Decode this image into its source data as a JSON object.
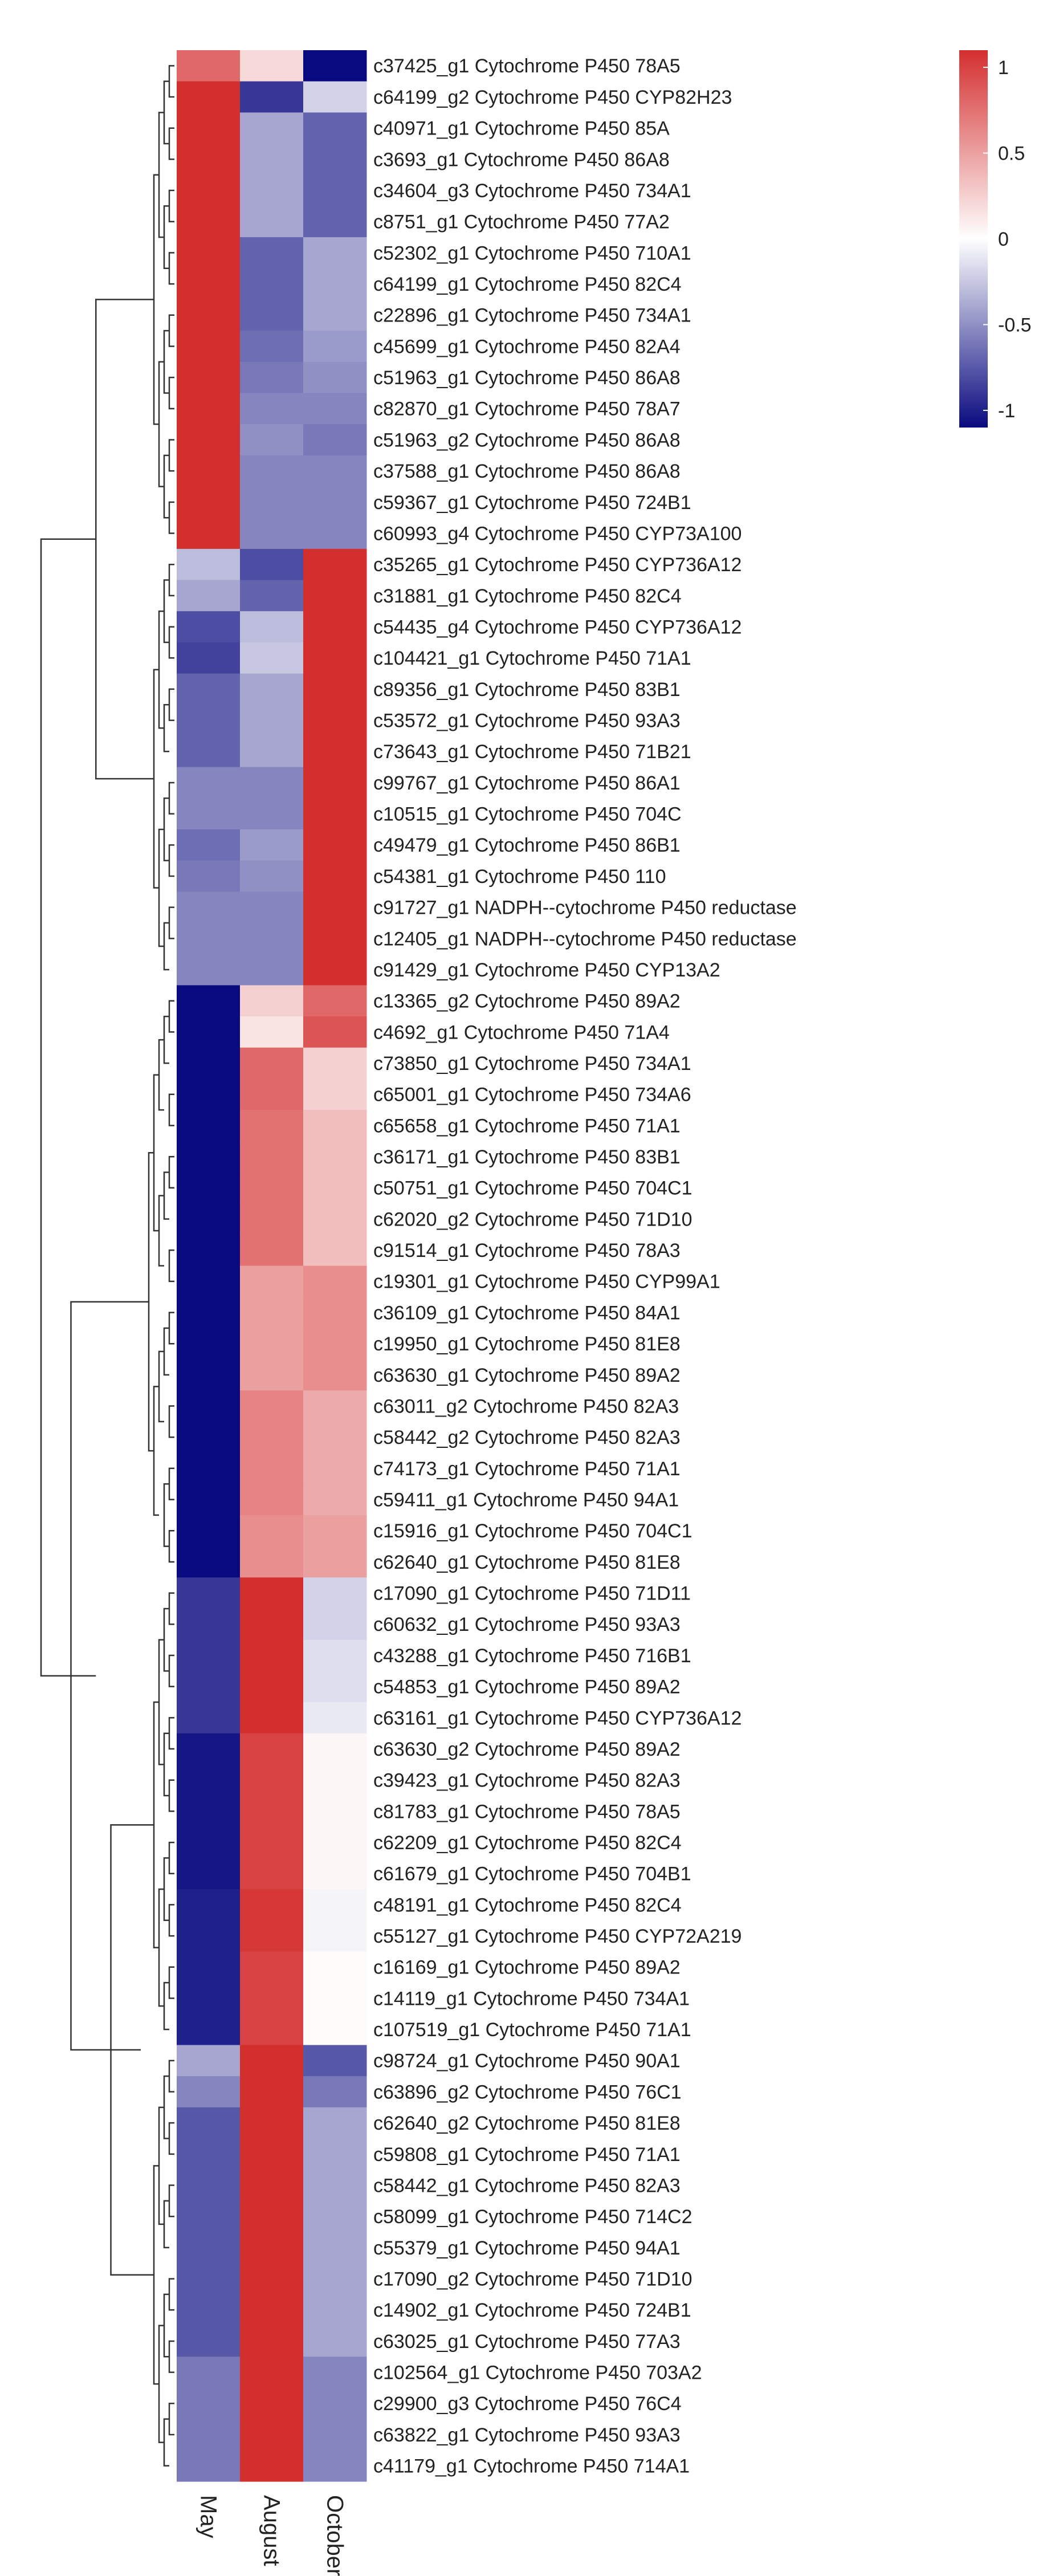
{
  "chart_data": {
    "type": "heatmap",
    "title": "",
    "columns": [
      "May",
      "August",
      "October"
    ],
    "rows": [
      {
        "label": "c37425_g1 Cytochrome P450 78A5",
        "values": [
          0.8,
          0.2,
          -1.1
        ]
      },
      {
        "label": "c64199_g2 Cytochrome P450 CYP82H23",
        "values": [
          1.1,
          -0.9,
          -0.2
        ]
      },
      {
        "label": "c40971_g1 Cytochrome P450 85A",
        "values": [
          1.1,
          -0.4,
          -0.7
        ]
      },
      {
        "label": "c3693_g1 Cytochrome P450 86A8",
        "values": [
          1.1,
          -0.4,
          -0.7
        ]
      },
      {
        "label": "c34604_g3 Cytochrome P450 734A1",
        "values": [
          1.1,
          -0.4,
          -0.7
        ]
      },
      {
        "label": "c8751_g1 Cytochrome P450 77A2",
        "values": [
          1.1,
          -0.4,
          -0.7
        ]
      },
      {
        "label": "c52302_g1 Cytochrome P450 710A1",
        "values": [
          1.1,
          -0.7,
          -0.4
        ]
      },
      {
        "label": "c64199_g1 Cytochrome P450 82C4",
        "values": [
          1.1,
          -0.7,
          -0.4
        ]
      },
      {
        "label": "c22896_g1 Cytochrome P450 734A1",
        "values": [
          1.1,
          -0.7,
          -0.4
        ]
      },
      {
        "label": "c45699_g1 Cytochrome P450 82A4",
        "values": [
          1.1,
          -0.65,
          -0.45
        ]
      },
      {
        "label": "c51963_g1 Cytochrome P450 86A8",
        "values": [
          1.1,
          -0.6,
          -0.5
        ]
      },
      {
        "label": "c82870_g1 Cytochrome P450 78A7",
        "values": [
          1.1,
          -0.55,
          -0.55
        ]
      },
      {
        "label": "c51963_g2 Cytochrome P450 86A8",
        "values": [
          1.1,
          -0.5,
          -0.6
        ]
      },
      {
        "label": "c37588_g1 Cytochrome P450 86A8",
        "values": [
          1.1,
          -0.55,
          -0.55
        ]
      },
      {
        "label": "c59367_g1 Cytochrome P450 724B1",
        "values": [
          1.1,
          -0.55,
          -0.55
        ]
      },
      {
        "label": "c60993_g4 Cytochrome P450 CYP73A100",
        "values": [
          1.1,
          -0.55,
          -0.55
        ]
      },
      {
        "label": "c35265_g1 Cytochrome P450 CYP736A12",
        "values": [
          -0.3,
          -0.8,
          1.1
        ]
      },
      {
        "label": "c31881_g1 Cytochrome P450 82C4",
        "values": [
          -0.4,
          -0.7,
          1.1
        ]
      },
      {
        "label": "c54435_g4 Cytochrome P450 CYP736A12",
        "values": [
          -0.8,
          -0.3,
          1.1
        ]
      },
      {
        "label": "c104421_g1 Cytochrome P450 71A1",
        "values": [
          -0.85,
          -0.25,
          1.1
        ]
      },
      {
        "label": "c89356_g1 Cytochrome P450 83B1",
        "values": [
          -0.7,
          -0.4,
          1.1
        ]
      },
      {
        "label": "c53572_g1 Cytochrome P450 93A3",
        "values": [
          -0.7,
          -0.4,
          1.1
        ]
      },
      {
        "label": "c73643_g1 Cytochrome P450 71B21",
        "values": [
          -0.7,
          -0.4,
          1.1
        ]
      },
      {
        "label": "c99767_g1 Cytochrome P450 86A1",
        "values": [
          -0.55,
          -0.55,
          1.1
        ]
      },
      {
        "label": "c10515_g1 Cytochrome P450 704C",
        "values": [
          -0.55,
          -0.55,
          1.1
        ]
      },
      {
        "label": "c49479_g1 Cytochrome P450 86B1",
        "values": [
          -0.65,
          -0.45,
          1.1
        ]
      },
      {
        "label": "c54381_g1 Cytochrome P450 110",
        "values": [
          -0.6,
          -0.5,
          1.1
        ]
      },
      {
        "label": "c91727_g1 NADPH--cytochrome P450 reductase",
        "values": [
          -0.55,
          -0.55,
          1.1
        ]
      },
      {
        "label": "c12405_g1 NADPH--cytochrome P450 reductase",
        "values": [
          -0.55,
          -0.55,
          1.1
        ]
      },
      {
        "label": "c91429_g1 Cytochrome P450 CYP13A2",
        "values": [
          -0.55,
          -0.55,
          1.1
        ]
      },
      {
        "label": "c13365_g2 Cytochrome P450 89A2",
        "values": [
          -1.1,
          0.25,
          0.8
        ]
      },
      {
        "label": "c4692_g1 Cytochrome P450 71A4",
        "values": [
          -1.1,
          0.15,
          0.9
        ]
      },
      {
        "label": "c73850_g1 Cytochrome P450 734A1",
        "values": [
          -1.1,
          0.8,
          0.25
        ]
      },
      {
        "label": "c65001_g1 Cytochrome P450 734A6",
        "values": [
          -1.1,
          0.8,
          0.25
        ]
      },
      {
        "label": "c65658_g1 Cytochrome P450 71A1",
        "values": [
          -1.1,
          0.75,
          0.35
        ]
      },
      {
        "label": "c36171_g1 Cytochrome P450 83B1",
        "values": [
          -1.1,
          0.75,
          0.35
        ]
      },
      {
        "label": "c50751_g1 Cytochrome P450 704C1",
        "values": [
          -1.1,
          0.75,
          0.35
        ]
      },
      {
        "label": "c62020_g2 Cytochrome P450 71D10",
        "values": [
          -1.1,
          0.75,
          0.35
        ]
      },
      {
        "label": "c91514_g1 Cytochrome P450 78A3",
        "values": [
          -1.1,
          0.75,
          0.35
        ]
      },
      {
        "label": "c19301_g1 Cytochrome P450 CYP99A1",
        "values": [
          -1.1,
          0.5,
          0.6
        ]
      },
      {
        "label": "c36109_g1 Cytochrome P450 84A1",
        "values": [
          -1.1,
          0.5,
          0.6
        ]
      },
      {
        "label": "c19950_g1 Cytochrome P450 81E8",
        "values": [
          -1.1,
          0.5,
          0.6
        ]
      },
      {
        "label": "c63630_g1 Cytochrome P450 89A2",
        "values": [
          -1.1,
          0.5,
          0.6
        ]
      },
      {
        "label": "c63011_g2 Cytochrome P450 82A3",
        "values": [
          -1.1,
          0.65,
          0.45
        ]
      },
      {
        "label": "c58442_g2 Cytochrome P450 82A3",
        "values": [
          -1.1,
          0.65,
          0.45
        ]
      },
      {
        "label": "c74173_g1 Cytochrome P450 71A1",
        "values": [
          -1.1,
          0.65,
          0.45
        ]
      },
      {
        "label": "c59411_g1 Cytochrome P450 94A1",
        "values": [
          -1.1,
          0.65,
          0.45
        ]
      },
      {
        "label": "c15916_g1 Cytochrome P450 704C1",
        "values": [
          -1.1,
          0.6,
          0.5
        ]
      },
      {
        "label": "c62640_g1 Cytochrome P450 81E8",
        "values": [
          -1.1,
          0.6,
          0.5
        ]
      },
      {
        "label": "c17090_g1 Cytochrome P450 71D11",
        "values": [
          -0.9,
          1.1,
          -0.2
        ]
      },
      {
        "label": "c60632_g1 Cytochrome P450 93A3",
        "values": [
          -0.9,
          1.1,
          -0.2
        ]
      },
      {
        "label": "c43288_g1 Cytochrome P450 716B1",
        "values": [
          -0.9,
          1.1,
          -0.15
        ]
      },
      {
        "label": "c54853_g1 Cytochrome P450 89A2",
        "values": [
          -0.9,
          1.1,
          -0.15
        ]
      },
      {
        "label": "c63161_g1 Cytochrome P450 CYP736A12",
        "values": [
          -0.9,
          1.1,
          -0.1
        ]
      },
      {
        "label": "c63630_g2 Cytochrome P450 89A2",
        "values": [
          -1.05,
          1.0,
          0.05
        ]
      },
      {
        "label": "c39423_g1 Cytochrome P450 82A3",
        "values": [
          -1.05,
          1.0,
          0.05
        ]
      },
      {
        "label": "c81783_g1 Cytochrome P450 78A5",
        "values": [
          -1.05,
          1.0,
          0.05
        ]
      },
      {
        "label": "c62209_g1 Cytochrome P450 82C4",
        "values": [
          -1.05,
          1.0,
          0.05
        ]
      },
      {
        "label": "c61679_g1 Cytochrome P450 704B1",
        "values": [
          -1.05,
          1.0,
          0.05
        ]
      },
      {
        "label": "c48191_g1 Cytochrome P450 82C4",
        "values": [
          -1.0,
          1.05,
          -0.05
        ]
      },
      {
        "label": "c55127_g1 Cytochrome P450 CYP72A219",
        "values": [
          -1.0,
          1.05,
          -0.05
        ]
      },
      {
        "label": "c16169_g1 Cytochrome P450 89A2",
        "values": [
          -1.0,
          1.0,
          0.02
        ]
      },
      {
        "label": "c14119_g1 Cytochrome P450 734A1",
        "values": [
          -1.0,
          1.0,
          0.02
        ]
      },
      {
        "label": "c107519_g1 Cytochrome P450 71A1",
        "values": [
          -1.0,
          1.0,
          0.02
        ]
      },
      {
        "label": "c98724_g1 Cytochrome P450 90A1",
        "values": [
          -0.4,
          1.1,
          -0.75
        ]
      },
      {
        "label": "c63896_g2 Cytochrome P450 76C1",
        "values": [
          -0.55,
          1.1,
          -0.6
        ]
      },
      {
        "label": "c62640_g2 Cytochrome P450 81E8",
        "values": [
          -0.75,
          1.1,
          -0.4
        ]
      },
      {
        "label": "c59808_g1 Cytochrome P450 71A1",
        "values": [
          -0.75,
          1.1,
          -0.4
        ]
      },
      {
        "label": "c58442_g1 Cytochrome P450 82A3",
        "values": [
          -0.75,
          1.1,
          -0.4
        ]
      },
      {
        "label": "c58099_g1 Cytochrome P450 714C2",
        "values": [
          -0.75,
          1.1,
          -0.4
        ]
      },
      {
        "label": "c55379_g1 Cytochrome P450 94A1",
        "values": [
          -0.75,
          1.1,
          -0.4
        ]
      },
      {
        "label": "c17090_g2 Cytochrome P450 71D10",
        "values": [
          -0.75,
          1.1,
          -0.4
        ]
      },
      {
        "label": "c14902_g1 Cytochrome P450 724B1",
        "values": [
          -0.75,
          1.1,
          -0.4
        ]
      },
      {
        "label": "c63025_g1 Cytochrome P450 77A3",
        "values": [
          -0.75,
          1.1,
          -0.4
        ]
      },
      {
        "label": "c102564_g1 Cytochrome P450 703A2",
        "values": [
          -0.6,
          1.1,
          -0.55
        ]
      },
      {
        "label": "c29900_g3 Cytochrome P450 76C4",
        "values": [
          -0.6,
          1.1,
          -0.55
        ]
      },
      {
        "label": "c63822_g1 Cytochrome P450 93A3",
        "values": [
          -0.6,
          1.1,
          -0.55
        ]
      },
      {
        "label": "c41179_g1 Cytochrome P450 714A1",
        "values": [
          -0.6,
          1.1,
          -0.55
        ]
      }
    ],
    "colorbar": {
      "ticks": [
        1,
        0.5,
        0,
        -0.5,
        -1
      ],
      "tick_labels": [
        "1",
        "0.5",
        "0",
        "-0.5",
        "-1"
      ],
      "range": [
        -1.1,
        1.1
      ]
    },
    "colors": {
      "low": "#0a0a80",
      "mid": "#ffffff",
      "high": "#d42f2f"
    },
    "row_dendrogram": true,
    "row_clusters": [
      {
        "start": 0,
        "end": 15
      },
      {
        "start": 16,
        "end": 29
      },
      {
        "start": 30,
        "end": 48
      },
      {
        "start": 49,
        "end": 63
      },
      {
        "start": 64,
        "end": 77
      }
    ]
  }
}
